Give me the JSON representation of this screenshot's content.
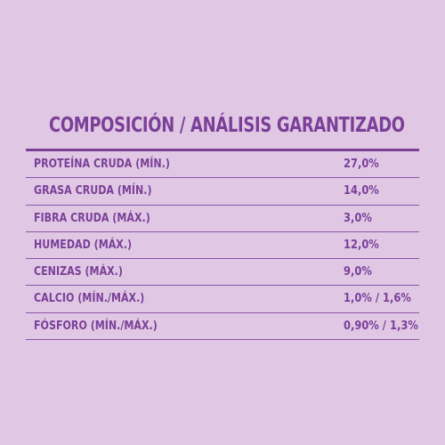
{
  "table": {
    "title": "COMPOSICIÓN / ANÁLISIS GARANTIZADO",
    "rows": [
      {
        "label": "PROTEÍNA CRUDA (MÍN.)",
        "value": "27,0%"
      },
      {
        "label": "GRASA CRUDA (MÍN.)",
        "value": "14,0%"
      },
      {
        "label": "FIBRA CRUDA (MÁX.)",
        "value": "3,0%"
      },
      {
        "label": "HUMEDAD (MÁX.)",
        "value": "12,0%"
      },
      {
        "label": "CENIZAS (MÁX.)",
        "value": "9,0%"
      },
      {
        "label": "CALCIO (MÍN./MÁX.)",
        "value": "1,0% / 1,6%"
      },
      {
        "label": "FÓSFORO (MÍN./MÁX.)",
        "value": "0,90% / 1,3%"
      }
    ]
  },
  "colors": {
    "background": "#e0c8e5",
    "text": "#7b3f98",
    "rule": "#8b54a8"
  }
}
